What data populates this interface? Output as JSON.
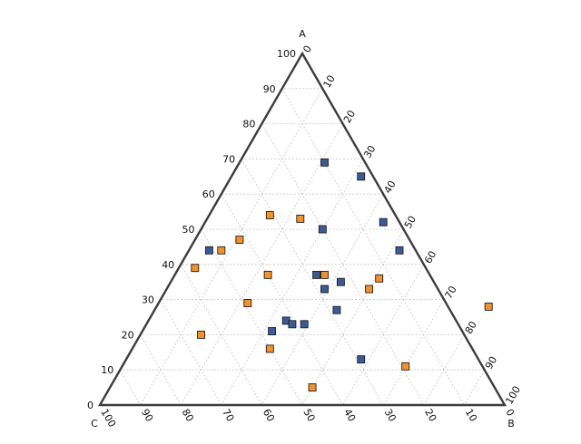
{
  "chart_data": {
    "type": "scatter",
    "subtype": "ternary",
    "title": "",
    "vertices": {
      "top": "A",
      "right": "B",
      "left": "C"
    },
    "axes": {
      "A": {
        "ticks": [
          "100",
          "90",
          "80",
          "70",
          "60",
          "50",
          "40",
          "30",
          "20",
          "10",
          "0"
        ]
      },
      "B": {
        "ticks": [
          "0",
          "10",
          "20",
          "30",
          "40",
          "50",
          "60",
          "70",
          "80",
          "90",
          "100"
        ]
      },
      "C": {
        "ticks": [
          "100",
          "90",
          "80",
          "70",
          "60",
          "50",
          "40",
          "30",
          "20",
          "10",
          "0"
        ]
      }
    },
    "grid": true,
    "series": [
      {
        "color": "#3d5a96",
        "marker": "square",
        "points": [
          {
            "A": 69,
            "B": 21,
            "C": 10
          },
          {
            "A": 65,
            "B": 32,
            "C": 3
          },
          {
            "A": 52,
            "B": 44,
            "C": 4
          },
          {
            "A": 50,
            "B": 30,
            "C": 20
          },
          {
            "A": 44,
            "B": 52,
            "C": 4
          },
          {
            "A": 44,
            "B": 5,
            "C": 51
          },
          {
            "A": 37,
            "B": 35,
            "C": 28
          },
          {
            "A": 35,
            "B": 42,
            "C": 23
          },
          {
            "A": 33,
            "B": 39,
            "C": 28
          },
          {
            "A": 27,
            "B": 45,
            "C": 28
          },
          {
            "A": 24,
            "B": 34,
            "C": 42
          },
          {
            "A": 23,
            "B": 39,
            "C": 38
          },
          {
            "A": 23,
            "B": 36,
            "C": 41
          },
          {
            "A": 21,
            "B": 32,
            "C": 47
          },
          {
            "A": 13,
            "B": 58,
            "C": 29
          }
        ]
      },
      {
        "color": "#f0922e",
        "marker": "square",
        "points": [
          {
            "A": 54,
            "B": 15,
            "C": 31
          },
          {
            "A": 53,
            "B": 23,
            "C": 24
          },
          {
            "A": 47,
            "B": 11,
            "C": 42
          },
          {
            "A": 44,
            "B": 8,
            "C": 48
          },
          {
            "A": 39,
            "B": 4,
            "C": 57
          },
          {
            "A": 37,
            "B": 23,
            "C": 40
          },
          {
            "A": 37,
            "B": 37,
            "C": 26
          },
          {
            "A": 36,
            "B": 51,
            "C": 13
          },
          {
            "A": 33,
            "B": 50,
            "C": 17
          },
          {
            "A": 29,
            "B": 22,
            "C": 49
          },
          {
            "A": 28,
            "B": 82,
            "C": -10
          },
          {
            "A": 20,
            "B": 15,
            "C": 65
          },
          {
            "A": 16,
            "B": 34,
            "C": 50
          },
          {
            "A": 11,
            "B": 70,
            "C": 19
          },
          {
            "A": 5,
            "B": 50,
            "C": 45
          }
        ]
      }
    ]
  }
}
